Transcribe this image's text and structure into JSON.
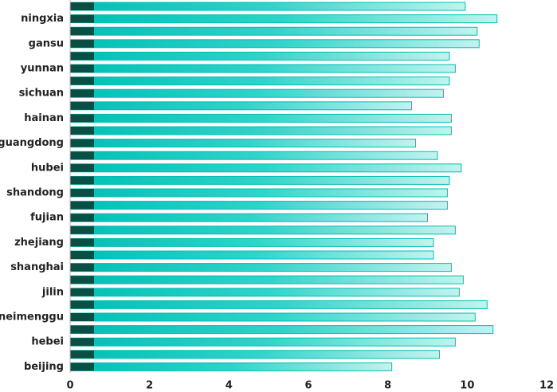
{
  "chart_data": {
    "type": "barh",
    "categories": [
      null,
      "ningxia",
      null,
      "gansu",
      null,
      "yunnan",
      null,
      "sichuan",
      null,
      "hainan",
      null,
      "guangdong",
      null,
      "hubei",
      null,
      "shandong",
      null,
      "fujian",
      null,
      "zhejiang",
      null,
      "shanghai",
      null,
      "jilin",
      null,
      "neimenggu",
      null,
      "hebei",
      null,
      "beijing"
    ],
    "values": [
      9.95,
      10.75,
      10.25,
      10.3,
      9.55,
      9.7,
      9.55,
      9.4,
      8.6,
      9.6,
      9.6,
      8.7,
      9.25,
      9.85,
      9.55,
      9.5,
      9.5,
      9.0,
      9.7,
      9.15,
      9.15,
      9.6,
      9.9,
      9.8,
      10.5,
      10.2,
      10.65,
      9.7,
      9.3,
      8.1
    ],
    "color": "#00bfb5",
    "xlim": [
      0,
      12
    ],
    "xticks": [
      0,
      2,
      4,
      6,
      8,
      10,
      12
    ]
  }
}
